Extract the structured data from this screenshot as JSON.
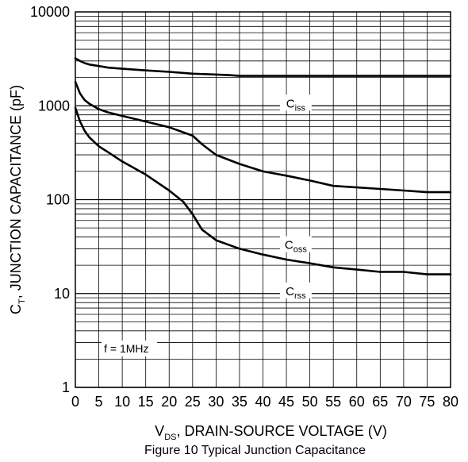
{
  "chart_data": {
    "type": "line",
    "caption": "Figure 10 Typical Junction Capacitance",
    "xlabel": {
      "main": "V",
      "sub": "DS",
      "rest": ", DRAIN-SOURCE VOLTAGE (V)"
    },
    "ylabel": {
      "main": "C",
      "sub": "T",
      "rest": ", JUNCTION CAPACITANCE (pF)"
    },
    "xlim": [
      0,
      80
    ],
    "ylim": [
      1,
      10000
    ],
    "yscale": "log",
    "grid": true,
    "x_ticks": [
      "0",
      "5",
      "10",
      "15",
      "20",
      "25",
      "30",
      "35",
      "40",
      "45",
      "50",
      "55",
      "60",
      "65",
      "70",
      "75",
      "80"
    ],
    "y_ticks": [
      "1",
      "10",
      "100",
      "1000",
      "10000"
    ],
    "annotation": "f = 1MHz",
    "series": [
      {
        "name": "Ciss",
        "label_main": "C",
        "label_sub": "iss",
        "label_at": [
          47,
          1000
        ],
        "x": [
          0,
          1,
          2,
          3,
          5,
          7,
          10,
          15,
          20,
          25,
          30,
          33,
          35,
          40,
          50,
          60,
          70,
          80
        ],
        "y": [
          3200,
          3000,
          2850,
          2750,
          2650,
          2550,
          2480,
          2380,
          2300,
          2200,
          2150,
          2120,
          2080,
          2080,
          2080,
          2080,
          2080,
          2080
        ]
      },
      {
        "name": "Coss",
        "label_main": "C",
        "label_sub": "oss",
        "label_at": [
          47,
          31
        ],
        "x": [
          0,
          1,
          2,
          3,
          5,
          7,
          10,
          15,
          20,
          25,
          27,
          30,
          35,
          40,
          45,
          50,
          55,
          60,
          65,
          70,
          75,
          80
        ],
        "y": [
          1800,
          1350,
          1150,
          1050,
          920,
          850,
          780,
          680,
          590,
          480,
          390,
          300,
          240,
          200,
          180,
          160,
          140,
          135,
          130,
          125,
          120,
          120
        ]
      },
      {
        "name": "Crss",
        "label_main": "C",
        "label_sub": "rss",
        "label_at": [
          47,
          10
        ],
        "x": [
          0,
          0.5,
          1,
          2,
          3,
          5,
          7,
          10,
          15,
          20,
          23,
          25,
          27,
          30,
          35,
          40,
          45,
          50,
          55,
          60,
          65,
          70,
          75,
          80
        ],
        "y": [
          950,
          800,
          680,
          540,
          460,
          370,
          320,
          255,
          185,
          125,
          95,
          70,
          48,
          37,
          30,
          26,
          23,
          21,
          19,
          18,
          17,
          17,
          16,
          16
        ]
      }
    ]
  }
}
